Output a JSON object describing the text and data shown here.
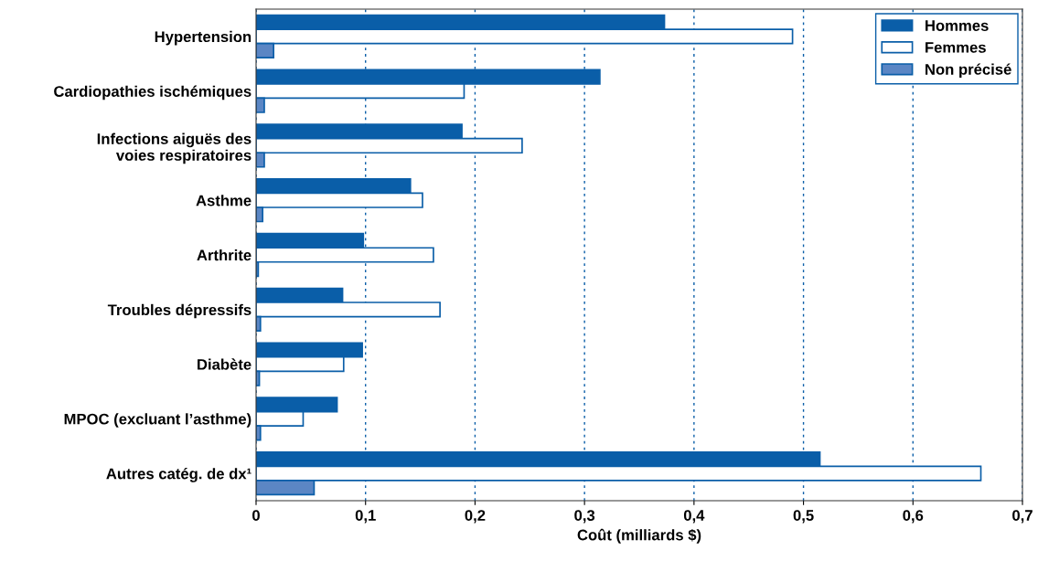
{
  "chart_data": {
    "type": "bar",
    "orientation": "horizontal",
    "xlabel": "Coût (milliards $)",
    "categories": [
      "Hypertension",
      "Cardiopathies ischémiques",
      "Infections aiguës des\nvoies respiratoires",
      "Asthme",
      "Arthrite",
      "Troubles dépressifs",
      "Diabète",
      "MPOC (excluant l’asthme)",
      "Autres catég. de dx¹"
    ],
    "series": [
      {
        "name": "Hommes",
        "color": "#0a5ea8",
        "values": [
          0.373,
          0.314,
          0.188,
          0.141,
          0.098,
          0.079,
          0.097,
          0.074,
          0.515
        ]
      },
      {
        "name": "Femmes",
        "color": "#ffffff",
        "values": [
          0.49,
          0.19,
          0.243,
          0.152,
          0.162,
          0.168,
          0.08,
          0.043,
          0.662
        ]
      },
      {
        "name": "Non précisé",
        "color": "#5b86c4",
        "values": [
          0.016,
          0.0075,
          0.0075,
          0.006,
          0.002,
          0.004,
          0.003,
          0.004,
          0.053
        ]
      }
    ],
    "xlim": [
      0,
      0.7
    ],
    "xticks": [
      0,
      {
        "value": 0.1,
        "label": "0,1"
      },
      {
        "value": 0.2,
        "label": "0,2"
      },
      {
        "value": 0.3,
        "label": "0,3"
      },
      {
        "value": 0.4,
        "label": "0,4"
      },
      {
        "value": 0.5,
        "label": "0,5"
      },
      {
        "value": 0.6,
        "label": "0,6"
      },
      {
        "value": 0.7,
        "label": "0,7"
      }
    ],
    "grid": "x",
    "legend": "top right"
  }
}
